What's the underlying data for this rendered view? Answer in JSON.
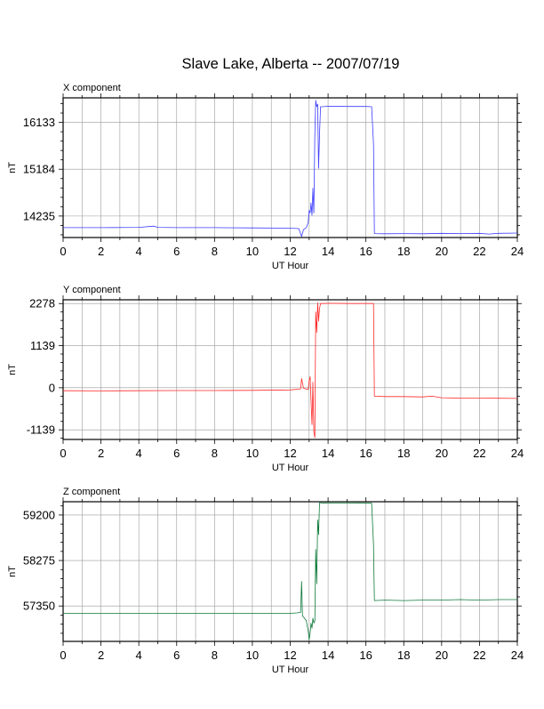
{
  "title": "Slave Lake, Alberta -- 2007/07/19",
  "chart_data": [
    {
      "type": "line",
      "panel_label": "X component",
      "xlabel": "UT Hour",
      "ylabel": "nT",
      "xlim": [
        0,
        24
      ],
      "ylim": [
        13800,
        16630
      ],
      "x_ticks": [
        0,
        2,
        4,
        6,
        8,
        10,
        12,
        14,
        16,
        18,
        20,
        22,
        24
      ],
      "y_ticks": [
        14235,
        15184,
        16133
      ],
      "grid": true,
      "color": "#3c3cff",
      "series": [
        {
          "x": [
            0,
            2,
            4,
            4.8,
            5.0,
            6,
            8,
            10,
            12,
            12.45,
            12.6,
            12.7,
            12.85,
            12.95,
            13.0,
            13.05,
            13.1,
            13.15,
            13.2,
            13.25,
            13.3,
            13.35,
            13.4,
            13.45,
            13.5,
            13.55,
            13.6,
            13.7,
            14,
            15,
            16,
            16.3,
            16.4,
            16.45,
            17,
            18,
            19,
            20,
            21,
            22,
            22.5,
            23,
            24
          ],
          "y": [
            14000,
            14000,
            14005,
            14030,
            14005,
            14000,
            14000,
            13995,
            13990,
            13980,
            13820,
            13960,
            14000,
            14100,
            14350,
            14300,
            14500,
            14250,
            14800,
            14300,
            15900,
            16580,
            16450,
            16500,
            15200,
            15900,
            16450,
            16450,
            16460,
            16455,
            16455,
            16450,
            15700,
            13880,
            13875,
            13880,
            13875,
            13885,
            13880,
            13885,
            13870,
            13885,
            13890
          ]
        }
      ]
    },
    {
      "type": "line",
      "panel_label": "Y component",
      "xlabel": "UT Hour",
      "ylabel": "nT",
      "xlim": [
        0,
        24
      ],
      "ylim": [
        -1400,
        2380
      ],
      "x_ticks": [
        0,
        2,
        4,
        6,
        8,
        10,
        12,
        14,
        16,
        18,
        20,
        22,
        24
      ],
      "y_ticks": [
        -1139,
        0,
        1139,
        2278
      ],
      "grid": true,
      "color": "#ff2a2a",
      "series": [
        {
          "x": [
            0,
            2,
            4,
            6,
            8,
            10,
            12,
            12.4,
            12.55,
            12.6,
            12.7,
            12.85,
            12.95,
            13.0,
            13.05,
            13.1,
            13.15,
            13.2,
            13.25,
            13.3,
            13.35,
            13.4,
            13.45,
            13.5,
            13.55,
            13.6,
            13.8,
            14,
            15,
            16,
            16.3,
            16.4,
            16.45,
            17,
            18,
            19,
            19.5,
            20,
            21,
            22,
            23,
            24
          ],
          "y": [
            -80,
            -85,
            -80,
            -75,
            -75,
            -70,
            -60,
            -40,
            -30,
            250,
            -10,
            -40,
            -50,
            200,
            300,
            -350,
            -1000,
            150,
            -1200,
            -1350,
            2050,
            1500,
            2300,
            1800,
            2150,
            2280,
            2280,
            2285,
            2280,
            2280,
            2280,
            2280,
            -230,
            -240,
            -240,
            -250,
            -230,
            -270,
            -280,
            -280,
            -285,
            -290
          ]
        }
      ]
    },
    {
      "type": "line",
      "panel_label": "Z component",
      "xlabel": "UT Hour",
      "ylabel": "nT",
      "xlim": [
        0,
        24
      ],
      "ylim": [
        56630,
        59470
      ],
      "x_ticks": [
        0,
        2,
        4,
        6,
        8,
        10,
        12,
        14,
        16,
        18,
        20,
        22,
        24
      ],
      "y_ticks": [
        57350,
        58275,
        59200
      ],
      "grid": true,
      "color": "#0d7a3a",
      "series": [
        {
          "x": [
            0,
            2,
            4,
            6,
            8,
            10,
            12,
            12.4,
            12.55,
            12.6,
            12.65,
            12.75,
            12.85,
            12.95,
            13.0,
            13.05,
            13.1,
            13.15,
            13.2,
            13.25,
            13.3,
            13.35,
            13.4,
            13.45,
            13.5,
            13.55,
            13.6,
            13.7,
            14,
            15,
            16,
            16.3,
            16.4,
            16.45,
            17,
            18,
            19,
            20,
            21,
            22,
            23,
            24
          ],
          "y": [
            57200,
            57200,
            57200,
            57200,
            57200,
            57200,
            57200,
            57210,
            57220,
            57850,
            57150,
            57100,
            57050,
            56850,
            56660,
            56800,
            57000,
            56900,
            57100,
            57000,
            57050,
            58500,
            57800,
            59100,
            58800,
            59450,
            59450,
            59440,
            59445,
            59445,
            59440,
            59440,
            58600,
            57460,
            57470,
            57460,
            57470,
            57470,
            57480,
            57470,
            57480,
            57480
          ]
        }
      ]
    }
  ]
}
